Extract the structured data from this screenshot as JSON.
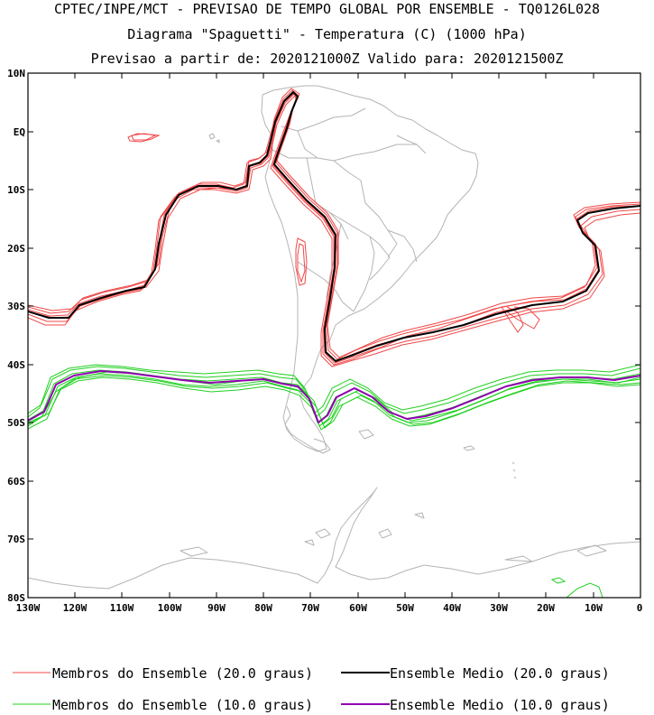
{
  "header": {
    "line1": "CPTEC/INPE/MCT - PREVISAO DE TEMPO GLOBAL POR ENSEMBLE - TQ0126L028",
    "line2": "Diagrama \"Spaguetti\" - Temperatura (C) (1000 hPa)",
    "line3": "Previsao a partir de: 2020121000Z  Valido para: 2020121500Z"
  },
  "map": {
    "lat_labels": [
      "10N",
      "EQ",
      "10S",
      "20S",
      "30S",
      "40S",
      "50S",
      "60S",
      "70S",
      "80S"
    ],
    "lon_labels": [
      "130W",
      "120W",
      "110W",
      "100W",
      "90W",
      "80W",
      "70W",
      "60W",
      "50W",
      "40W",
      "30W",
      "20W",
      "10W",
      "0"
    ]
  },
  "legend": {
    "members_20": "Membros do Ensemble (20.0 graus)",
    "mean_20": "Ensemble Medio (20.0 graus)",
    "members_10": "Membros do Ensemble (10.0 graus)",
    "mean_10": "Ensemble Medio (10.0 graus)"
  },
  "colors": {
    "members_20": "#f04848",
    "mean_20": "#000000",
    "members_10": "#20d020",
    "mean_10": "#9000b0",
    "coast": "#b4b4b4"
  }
}
